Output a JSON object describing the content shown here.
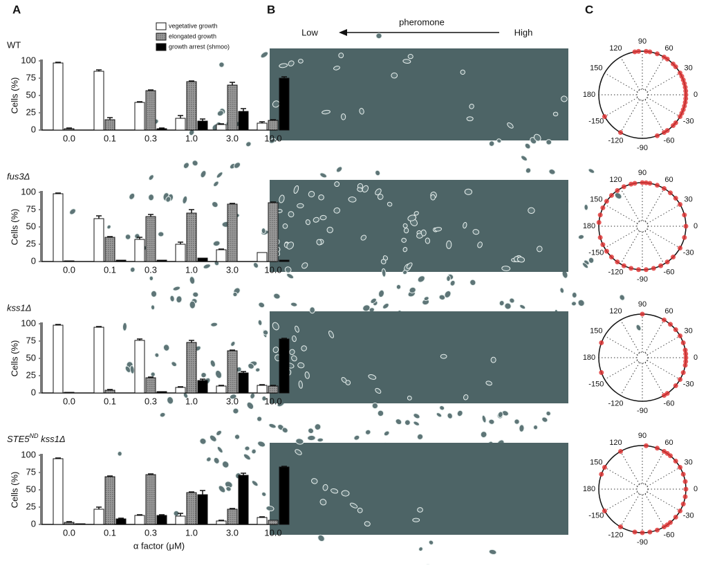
{
  "panel_labels": [
    "A",
    "B",
    "C"
  ],
  "pheromone": {
    "label": "pheromone",
    "low": "Low",
    "high": "High"
  },
  "chart_data": [
    {
      "type": "bar",
      "title": "WT",
      "ylabel": "Cells (%)",
      "categories": [
        "0.0",
        "0.1",
        "0.3",
        "1.0",
        "3.0",
        "10.0"
      ],
      "ylim": [
        0,
        100
      ],
      "yticks": [
        0,
        25,
        50,
        75,
        100
      ],
      "series": [
        {
          "name": "vegetative growth",
          "color": "#ffffff",
          "values": [
            97,
            85,
            40,
            17,
            8,
            10
          ],
          "errors": [
            1,
            2,
            1,
            4,
            1,
            2
          ]
        },
        {
          "name": "elongated growth",
          "color": "#8c8c8c",
          "values": [
            2,
            15,
            57,
            70,
            65,
            14
          ],
          "errors": [
            1,
            3,
            1,
            1,
            4,
            1
          ]
        },
        {
          "name": "growth arrest (shmoo)",
          "color": "#000000",
          "values": [
            0,
            0,
            2,
            13,
            27,
            75
          ],
          "errors": [
            0,
            0,
            1,
            3,
            4,
            2
          ]
        }
      ]
    },
    {
      "type": "bar",
      "title": "fus3Δ",
      "ylabel": "Cells (%)",
      "categories": [
        "0.0",
        "0.1",
        "0.3",
        "1.0",
        "3.0",
        "10.0"
      ],
      "ylim": [
        0,
        100
      ],
      "yticks": [
        0,
        25,
        50,
        75,
        100
      ],
      "series": [
        {
          "color": "#ffffff",
          "values": [
            98,
            62,
            32,
            25,
            17,
            13
          ],
          "errors": [
            1,
            4,
            3,
            3,
            1,
            0
          ]
        },
        {
          "color": "#8c8c8c",
          "values": [
            1,
            35,
            65,
            70,
            83,
            85
          ],
          "errors": [
            0,
            1,
            3,
            5,
            1,
            1
          ]
        },
        {
          "color": "#000000",
          "values": [
            0,
            2,
            2,
            5,
            0,
            2
          ],
          "errors": [
            0,
            0,
            0,
            0,
            0,
            0
          ]
        }
      ]
    },
    {
      "type": "bar",
      "title": "kss1Δ",
      "ylabel": "Cells (%)",
      "categories": [
        "0.0",
        "0.1",
        "0.3",
        "1.0",
        "3.0",
        "10.0"
      ],
      "ylim": [
        0,
        100
      ],
      "yticks": [
        0,
        25,
        50,
        75,
        100
      ],
      "series": [
        {
          "color": "#ffffff",
          "values": [
            98,
            95,
            76,
            8,
            10,
            11
          ],
          "errors": [
            1,
            1,
            2,
            1,
            1,
            1
          ]
        },
        {
          "color": "#8c8c8c",
          "values": [
            1,
            4,
            22,
            73,
            61,
            10
          ],
          "errors": [
            0,
            1,
            1,
            3,
            1,
            1
          ]
        },
        {
          "color": "#000000",
          "values": [
            0,
            0,
            2,
            18,
            29,
            78
          ],
          "errors": [
            0,
            0,
            0,
            2,
            2,
            1
          ]
        }
      ]
    },
    {
      "type": "bar",
      "title_parts": [
        {
          "text": "STE5"
        },
        {
          "text": "ND",
          "sup": true
        },
        {
          "text": " kss1Δ"
        }
      ],
      "ylabel": "Cells (%)",
      "xlabel": "α factor (μM)",
      "categories": [
        "0.0",
        "0.1",
        "0.3",
        "1.0",
        "3.0",
        "10.0"
      ],
      "ylim": [
        0,
        100
      ],
      "yticks": [
        0,
        25,
        50,
        75,
        100
      ],
      "series": [
        {
          "color": "#ffffff",
          "values": [
            95,
            22,
            13,
            12,
            5,
            10
          ],
          "errors": [
            1,
            3,
            1,
            4,
            1,
            1
          ]
        },
        {
          "color": "#8c8c8c",
          "values": [
            3,
            69,
            72,
            46,
            22,
            6
          ],
          "errors": [
            1,
            1,
            1,
            1,
            1,
            0
          ]
        },
        {
          "color": "#000000",
          "values": [
            1,
            8,
            13,
            43,
            71,
            83
          ],
          "errors": [
            0,
            1,
            1,
            6,
            3,
            1
          ]
        }
      ]
    },
    {
      "type": "polar",
      "color": "#e03030",
      "angle_ticks": [
        90,
        60,
        30,
        0,
        -30,
        -60,
        -90,
        -120,
        -150,
        180,
        150,
        120
      ],
      "angles": [
        100,
        95,
        85,
        80,
        70,
        60,
        55,
        45,
        40,
        30,
        25,
        20,
        15,
        10,
        5,
        0,
        -5,
        -10,
        -15,
        -20,
        -25,
        -30,
        -40,
        -45,
        -55,
        -60,
        -70,
        -120,
        -150
      ]
    },
    {
      "type": "polar",
      "color": "#e03030",
      "angle_ticks": [
        90,
        60,
        30,
        0,
        -30,
        -60,
        -90,
        -120,
        -150,
        180,
        150,
        120
      ],
      "angles": [
        90,
        85,
        80,
        70,
        60,
        50,
        40,
        30,
        15,
        0,
        -15,
        -30,
        -45,
        -55,
        -65,
        -75,
        -85,
        -95,
        -105,
        -115,
        -125,
        -135,
        -145,
        -155,
        -165,
        175,
        165,
        155,
        145,
        135,
        125,
        115,
        105,
        100
      ]
    },
    {
      "type": "polar",
      "color": "#e03030",
      "angle_ticks": [
        90,
        60,
        30,
        0,
        -30,
        -60,
        -90,
        -120,
        -150,
        180,
        150,
        120
      ],
      "angles": [
        90,
        60,
        50,
        40,
        30,
        20,
        10,
        5,
        0,
        -5,
        -10,
        -20,
        -30,
        -40,
        -55,
        -60,
        160,
        -160
      ]
    },
    {
      "type": "polar",
      "color": "#e03030",
      "angle_ticks": [
        90,
        60,
        30,
        0,
        -30,
        -60,
        -90,
        -120,
        -150,
        180,
        150,
        120
      ],
      "angles": [
        85,
        70,
        60,
        55,
        50,
        40,
        30,
        20,
        10,
        0,
        -10,
        -20,
        -30,
        -40,
        -50,
        -55,
        -60,
        -70,
        -80,
        -90,
        -100,
        -120,
        120,
        150,
        160,
        -150
      ]
    }
  ]
}
